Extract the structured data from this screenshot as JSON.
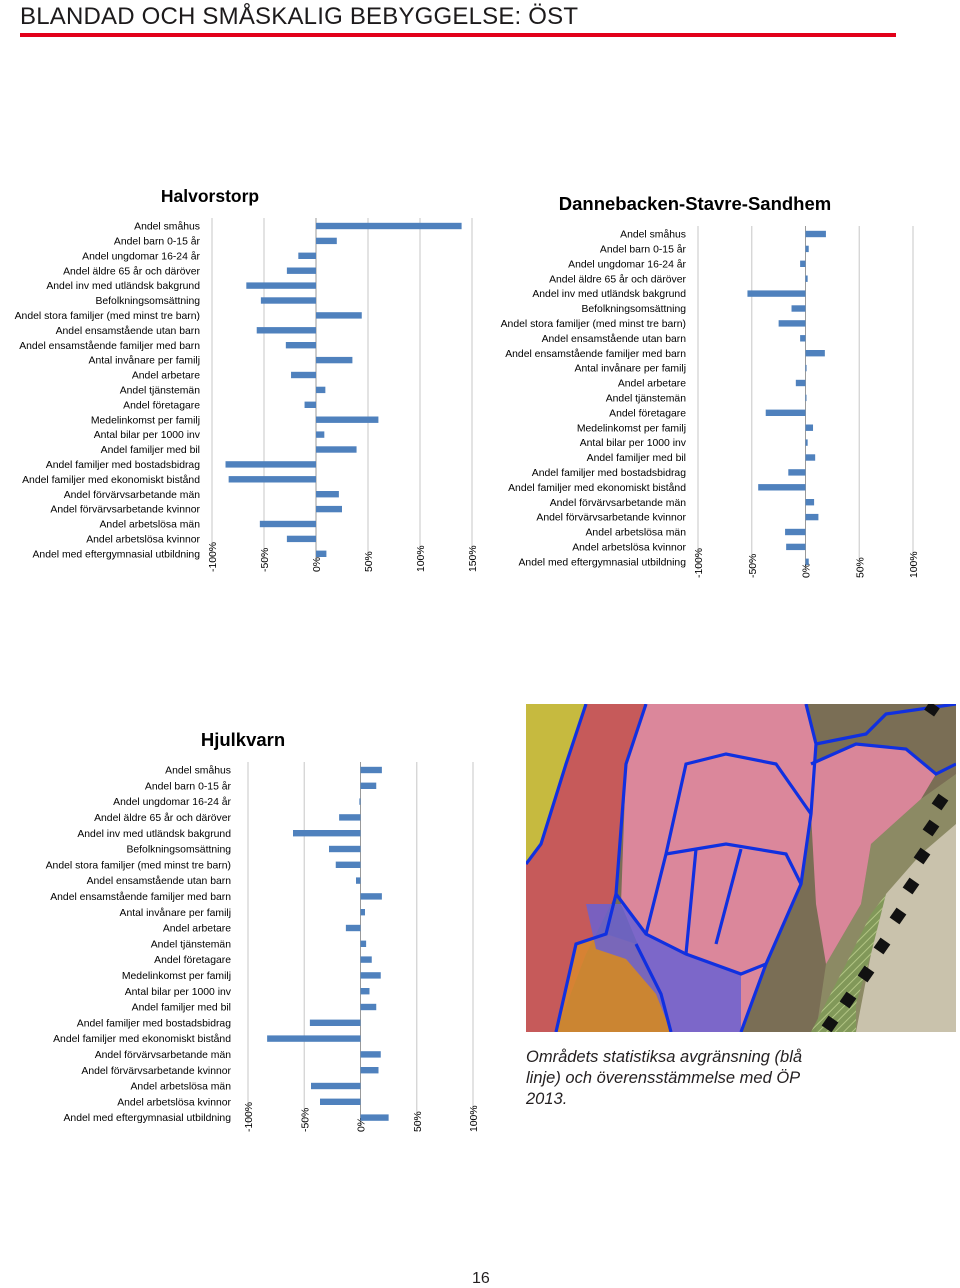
{
  "header": {
    "title": "BLANDAD OCH SMÅSKALIG BEBYGGELSE: ÖST",
    "accent_color": "#e2001a"
  },
  "bar_color": "#4f81bd",
  "categories": [
    "Andel småhus",
    "Andel barn 0-15 år",
    "Andel ungdomar 16-24 år",
    "Andel äldre 65 år och däröver",
    "Andel inv med utländsk bakgrund",
    "Befolkningsomsättning",
    "Andel stora familjer (med minst tre barn)",
    "Andel ensamstående utan barn",
    "Andel ensamstående familjer med barn",
    "Antal invånare per familj",
    "Andel arbetare",
    "Andel tjänstemän",
    "Andel företagare",
    "Medelinkomst per familj",
    "Antal bilar per 1000 inv",
    "Andel familjer med bil",
    "Andel familjer med bostadsbidrag",
    "Andel familjer med ekonomiskt bistånd",
    "Andel förvärvsarbetande män",
    "Andel förvärvsarbetande kvinnor",
    "Andel arbetslösa män",
    "Andel arbetslösa kvinnor",
    "Andel med eftergymnasial utbildning"
  ],
  "chart_data": [
    {
      "type": "bar",
      "orientation": "horizontal",
      "title": "Halvorstorp",
      "ticks": [
        "-100%",
        "-50%",
        "0%",
        "50%",
        "100%",
        "150%"
      ],
      "xlim": [
        -100,
        150
      ],
      "grid": true,
      "values": [
        140,
        20,
        -17,
        -28,
        -67,
        -53,
        44,
        -57,
        -29,
        35,
        -24,
        9,
        -11,
        60,
        8,
        39,
        -87,
        -84,
        22,
        25,
        -54,
        -28,
        10
      ]
    },
    {
      "type": "bar",
      "orientation": "horizontal",
      "title": "Dannebacken-Stavre-Sandhem",
      "ticks": [
        "-100%",
        "-50%",
        "0%",
        "50%",
        "100%"
      ],
      "xlim": [
        -100,
        100
      ],
      "grid": true,
      "values": [
        19,
        3,
        -5,
        2,
        -54,
        -13,
        -25,
        -5,
        18,
        1,
        -9,
        0,
        -37,
        7,
        2,
        9,
        -16,
        -44,
        8,
        12,
        -19,
        -18,
        3
      ]
    },
    {
      "type": "bar",
      "orientation": "horizontal",
      "title": "Hjulkvarn",
      "ticks": [
        "-100%",
        "-50%",
        "0%",
        "50%",
        "100%"
      ],
      "xlim": [
        -100,
        100
      ],
      "grid": true,
      "values": [
        19,
        14,
        -1,
        -19,
        -60,
        -28,
        -22,
        -4,
        19,
        4,
        -13,
        5,
        10,
        18,
        8,
        14,
        -45,
        -83,
        18,
        16,
        -44,
        -36,
        25
      ]
    }
  ],
  "map": {
    "label": "map-image"
  },
  "caption": "Områdets statistiksa avgränsning (blå linje) och överensstämmelse med ÖP 2013.",
  "page_number": "16"
}
